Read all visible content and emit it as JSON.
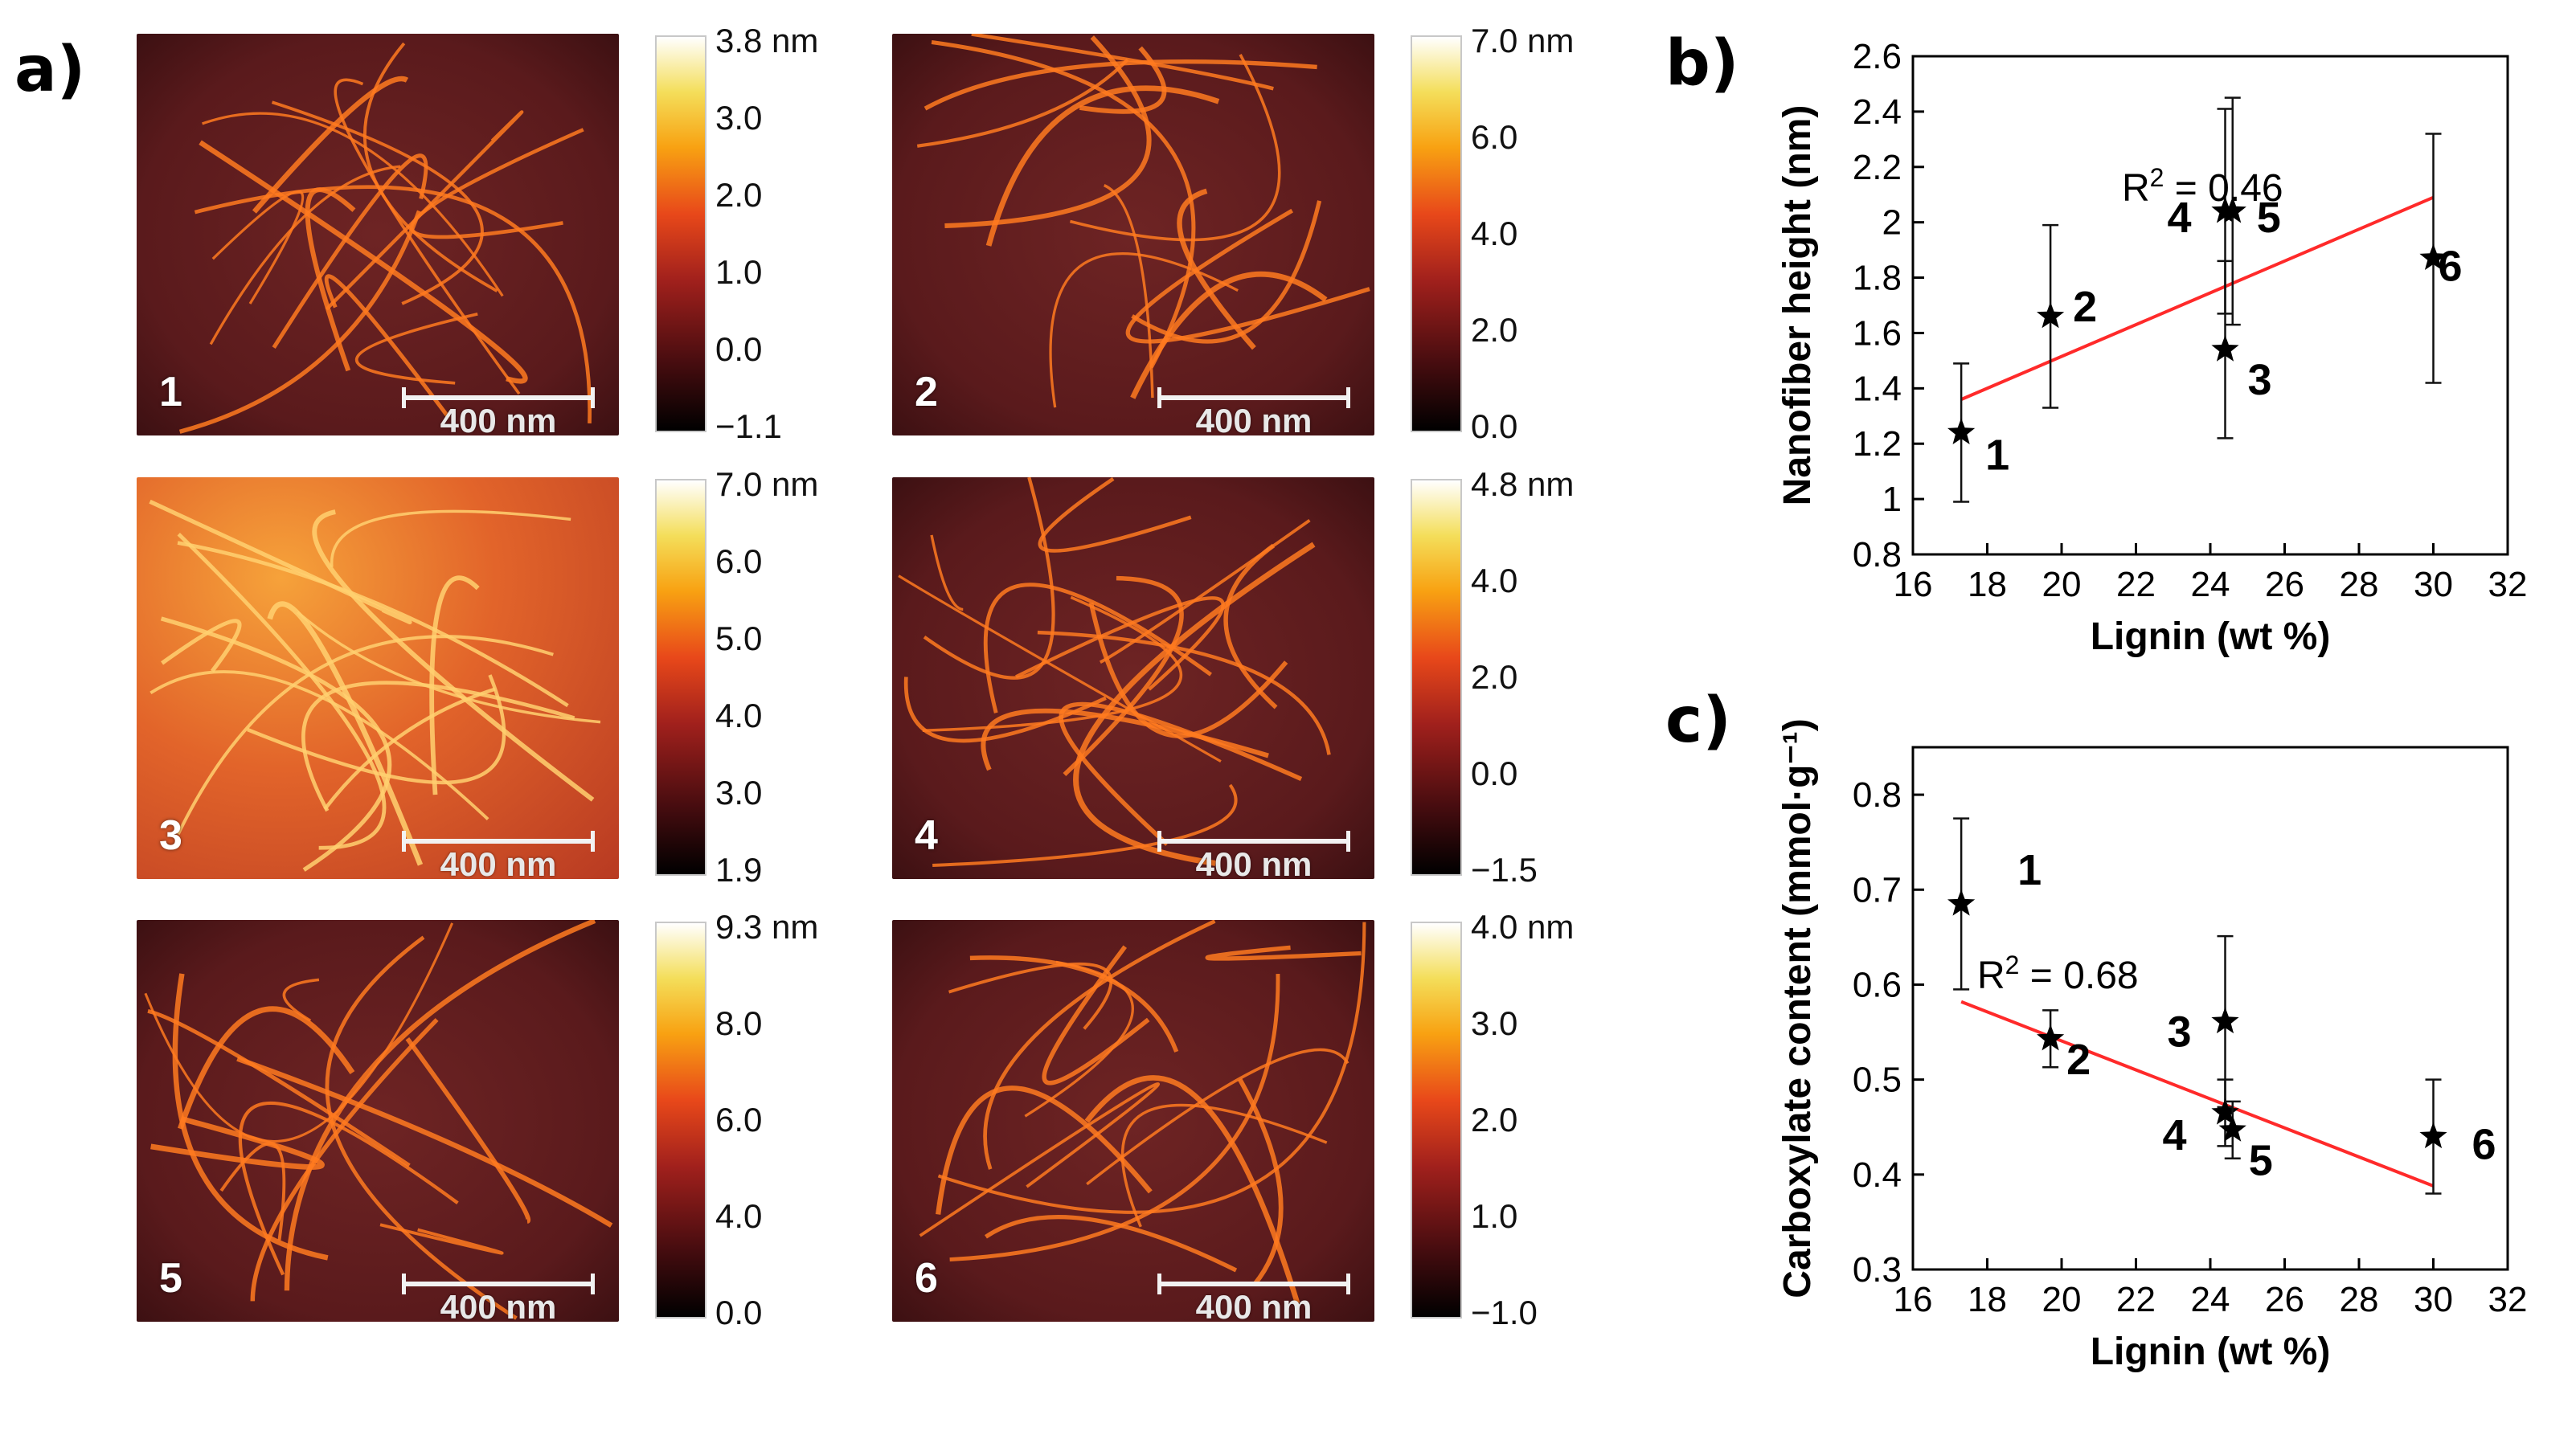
{
  "figure": {
    "panel_labels": {
      "a": "a)",
      "b": "b)",
      "c": "c)"
    },
    "colors": {
      "line": "#ff2a2a",
      "marker": "#000000",
      "afm_base": "#5a1a1c",
      "fiber": "#ff7a20"
    },
    "afm_images": [
      {
        "number": "1",
        "scale_bar": "400 nm",
        "colorbar_ticks": [
          "3.8 nm",
          "3.0",
          "2.0",
          "1.0",
          "0.0",
          "−1.1"
        ]
      },
      {
        "number": "2",
        "scale_bar": "400 nm",
        "colorbar_ticks": [
          "7.0 nm",
          "6.0",
          "4.0",
          "2.0",
          "0.0"
        ]
      },
      {
        "number": "3",
        "scale_bar": "400 nm",
        "colorbar_ticks": [
          "7.0 nm",
          "6.0",
          "5.0",
          "4.0",
          "3.0",
          "1.9"
        ]
      },
      {
        "number": "4",
        "scale_bar": "400 nm",
        "colorbar_ticks": [
          "4.8 nm",
          "4.0",
          "2.0",
          "0.0",
          "−1.5"
        ]
      },
      {
        "number": "5",
        "scale_bar": "400 nm",
        "colorbar_ticks": [
          "9.3 nm",
          "8.0",
          "6.0",
          "4.0",
          "0.0"
        ]
      },
      {
        "number": "6",
        "scale_bar": "400 nm",
        "colorbar_ticks": [
          "4.0 nm",
          "3.0",
          "2.0",
          "1.0",
          "−1.0"
        ]
      }
    ]
  },
  "chart_data": [
    {
      "type": "scatter",
      "panel": "b)",
      "xlabel": "Lignin (wt %)",
      "ylabel": "Nanofiber height (nm)",
      "xlim": [
        16,
        32
      ],
      "ylim": [
        0.8,
        2.6
      ],
      "xticks": [
        "16",
        "18",
        "20",
        "22",
        "24",
        "26",
        "28",
        "30",
        "32"
      ],
      "yticks": [
        "0.8",
        "1",
        "1.2",
        "1.4",
        "1.6",
        "1.8",
        "2",
        "2.2",
        "2.4",
        "2.6"
      ],
      "annotation": {
        "prefix": "R",
        "sup": "2",
        "suffix": " = 0.46"
      },
      "points": [
        {
          "label": "1",
          "x": 17.3,
          "y": 1.24,
          "err": 0.25
        },
        {
          "label": "2",
          "x": 19.7,
          "y": 1.66,
          "err": 0.33
        },
        {
          "label": "3",
          "x": 24.4,
          "y": 1.54,
          "err": 0.32
        },
        {
          "label": "4",
          "x": 24.4,
          "y": 2.04,
          "err": 0.37
        },
        {
          "label": "5",
          "x": 24.6,
          "y": 2.04,
          "err": 0.41
        },
        {
          "label": "6",
          "x": 30.0,
          "y": 1.87,
          "err": 0.45
        }
      ],
      "fit_line": {
        "x": [
          17.3,
          30.0
        ],
        "y": [
          1.36,
          2.09
        ]
      }
    },
    {
      "type": "scatter",
      "panel": "c)",
      "xlabel": "Lignin (wt %)",
      "ylabel": "Carboxylate content (mmol·g⁻¹)",
      "xlim": [
        16,
        32
      ],
      "ylim": [
        0.3,
        0.85
      ],
      "xticks": [
        "16",
        "18",
        "20",
        "22",
        "24",
        "26",
        "28",
        "30",
        "32"
      ],
      "yticks": [
        "0.3",
        "0.4",
        "0.5",
        "0.6",
        "0.7",
        "0.8"
      ],
      "annotation": {
        "prefix": "R",
        "sup": "2",
        "suffix": " = 0.68"
      },
      "points": [
        {
          "label": "1",
          "x": 17.3,
          "y": 0.685,
          "err": 0.09
        },
        {
          "label": "2",
          "x": 19.7,
          "y": 0.543,
          "err": 0.03
        },
        {
          "label": "3",
          "x": 24.4,
          "y": 0.561,
          "err": 0.09
        },
        {
          "label": "4",
          "x": 24.4,
          "y": 0.465,
          "err": 0.035
        },
        {
          "label": "5",
          "x": 24.6,
          "y": 0.447,
          "err": 0.03
        },
        {
          "label": "6",
          "x": 30.0,
          "y": 0.44,
          "err": 0.06
        }
      ],
      "fit_line": {
        "x": [
          17.3,
          30.0
        ],
        "y": [
          0.582,
          0.388
        ]
      }
    }
  ]
}
